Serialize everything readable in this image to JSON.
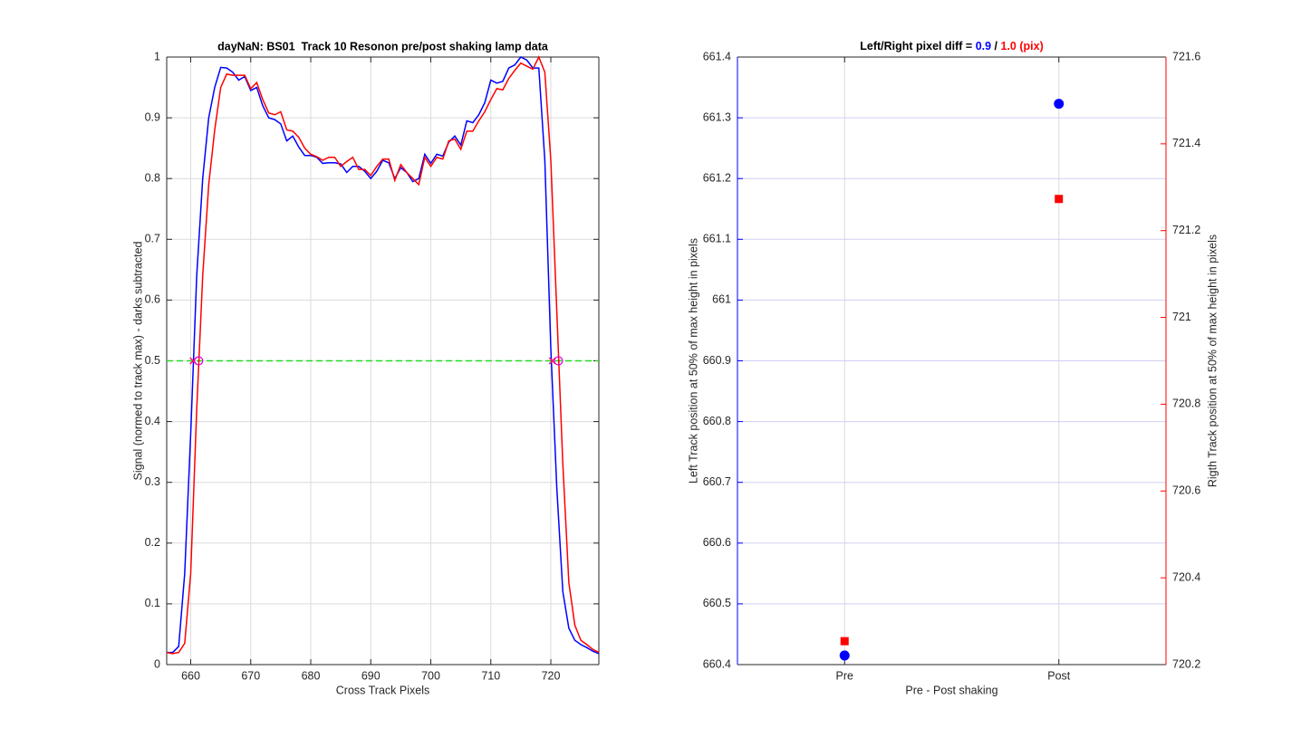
{
  "chart_data": [
    {
      "type": "line",
      "title": "dayNaN: BS01  Track 10 Resonon pre/post shaking lamp data",
      "xlabel": "Cross Track Pixels",
      "ylabel": "Signal (normed to track max) - darks subtracted",
      "x": [
        656,
        657,
        658,
        659,
        660,
        661,
        662,
        663,
        664,
        665,
        666,
        667,
        668,
        669,
        670,
        671,
        672,
        673,
        674,
        675,
        676,
        677,
        678,
        679,
        680,
        681,
        682,
        683,
        684,
        685,
        686,
        687,
        688,
        689,
        690,
        691,
        692,
        693,
        694,
        695,
        696,
        697,
        698,
        699,
        700,
        701,
        702,
        703,
        704,
        705,
        706,
        707,
        708,
        709,
        710,
        711,
        712,
        713,
        714,
        715,
        716,
        717,
        718,
        719,
        720,
        721,
        722,
        723,
        724,
        725,
        726,
        727,
        728
      ],
      "series": [
        {
          "color": "#0000ff",
          "values": [
            0.02,
            0.02,
            0.03,
            0.15,
            0.38,
            0.64,
            0.8,
            0.9,
            0.95,
            0.983,
            0.982,
            0.975,
            0.962,
            0.968,
            0.945,
            0.95,
            0.92,
            0.9,
            0.897,
            0.89,
            0.862,
            0.87,
            0.852,
            0.838,
            0.838,
            0.835,
            0.825,
            0.826,
            0.826,
            0.824,
            0.81,
            0.82,
            0.82,
            0.812,
            0.8,
            0.812,
            0.83,
            0.826,
            0.8,
            0.818,
            0.81,
            0.795,
            0.8,
            0.84,
            0.825,
            0.84,
            0.837,
            0.86,
            0.87,
            0.855,
            0.895,
            0.892,
            0.905,
            0.925,
            0.962,
            0.957,
            0.96,
            0.982,
            0.987,
            1.0,
            0.995,
            0.982,
            0.982,
            0.83,
            0.52,
            0.29,
            0.12,
            0.06,
            0.04,
            0.033,
            0.028,
            0.022,
            0.018
          ]
        },
        {
          "color": "#ff0000",
          "values": [
            0.02,
            0.018,
            0.02,
            0.035,
            0.15,
            0.42,
            0.64,
            0.79,
            0.88,
            0.95,
            0.972,
            0.97,
            0.97,
            0.97,
            0.948,
            0.958,
            0.93,
            0.908,
            0.905,
            0.91,
            0.88,
            0.878,
            0.868,
            0.85,
            0.84,
            0.836,
            0.83,
            0.835,
            0.835,
            0.82,
            0.828,
            0.835,
            0.815,
            0.815,
            0.805,
            0.82,
            0.832,
            0.832,
            0.797,
            0.823,
            0.81,
            0.8,
            0.79,
            0.835,
            0.82,
            0.835,
            0.832,
            0.862,
            0.865,
            0.848,
            0.878,
            0.878,
            0.895,
            0.91,
            0.93,
            0.948,
            0.946,
            0.965,
            0.978,
            0.99,
            0.985,
            0.98,
            1.0,
            0.975,
            0.83,
            0.58,
            0.33,
            0.135,
            0.065,
            0.04,
            0.033,
            0.025,
            0.02
          ]
        }
      ],
      "threshold": {
        "value": 0.5,
        "color": "#22dd22"
      },
      "points": [
        {
          "marker": "x",
          "color": "#ff1060",
          "x": [
            660.415,
            720.254
          ],
          "y": [
            0.5,
            0.5
          ]
        },
        {
          "marker": "circle",
          "color": "#dd00dd",
          "x": [
            661.323,
            721.273
          ],
          "y": [
            0.5,
            0.5
          ]
        }
      ],
      "xlim": [
        656,
        728
      ],
      "ylim": [
        0,
        1
      ],
      "xticks": [
        660,
        670,
        680,
        690,
        700,
        710,
        720
      ],
      "yticks": [
        0,
        0.1,
        0.2,
        0.3,
        0.4,
        0.5,
        0.6,
        0.7,
        0.8,
        0.9,
        1
      ],
      "grid": true,
      "grid_color": "#dcdcdc"
    },
    {
      "type": "scatter",
      "title": [
        {
          "text": "Left/Right pixel diff = ",
          "color": "#000000"
        },
        {
          "text": "0.9",
          "color": "#0000ff"
        },
        {
          "text": " / ",
          "color": "#000000"
        },
        {
          "text": "1.0 (pix)",
          "color": "#ff0000"
        }
      ],
      "xlabel": "Pre - Post shaking",
      "ylabel": "Left Track position at 50% of max height in pixels",
      "y2label": "Rigth Track position at 50% of max height in pixels",
      "ylabel_color": "#0000ff",
      "y2label_color": "#ff0000",
      "x": [
        1,
        2
      ],
      "series": [
        {
          "color": "#0000ff",
          "marker": "circle",
          "values": [
            660.415,
            661.323
          ]
        },
        {
          "color": "#ff0000",
          "marker": "square",
          "axis": "y2",
          "values": [
            720.254,
            721.273
          ]
        }
      ],
      "xlim": [
        0.5,
        2.5
      ],
      "xticks": [
        {
          "value": 1,
          "label": "Pre"
        },
        {
          "value": 2,
          "label": "Post"
        }
      ],
      "ylim": [
        660.4,
        661.4
      ],
      "yticks": [
        660.4,
        660.5,
        660.6,
        660.7,
        660.8,
        660.9,
        661,
        661.1,
        661.2,
        661.3,
        661.4
      ],
      "y2lim": [
        720.2,
        721.6
      ],
      "y2ticks": [
        720.2,
        720.4,
        720.6,
        720.8,
        721,
        721.2,
        721.4,
        721.6
      ],
      "grid": true,
      "grid_color": "#d0d0f4",
      "xgrid_color": "#dcdcdc"
    }
  ]
}
